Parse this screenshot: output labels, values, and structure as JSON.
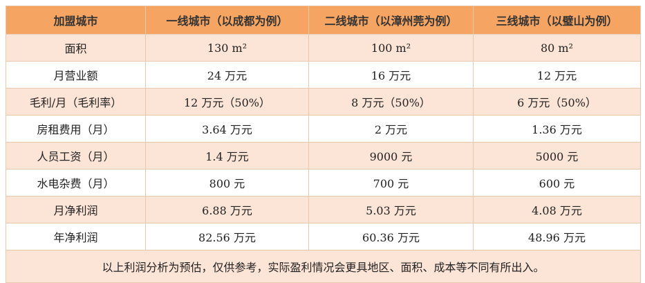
{
  "table": {
    "header": [
      "加盟城市",
      "一线城市（以成都为例）",
      "二线城市（以漳州莞为例）",
      "三线城市（以璧山为例）"
    ],
    "rows": [
      [
        "面积",
        "130 m²",
        "100 m²",
        "80 m²"
      ],
      [
        "月营业额",
        "24 万元",
        "16 万元",
        "12 万元"
      ],
      [
        "毛利/月（毛利率）",
        "12 万元（50%）",
        "8 万元（50%）",
        "6 万元（50%）"
      ],
      [
        "房租费用（月）",
        "3.64 万元",
        "2 万元",
        "1.36 万元"
      ],
      [
        "人员工资（月）",
        "1.4 万元",
        "9000 元",
        "5000 元"
      ],
      [
        "水电杂费（月）",
        "800 元",
        "700 元",
        "600 元"
      ],
      [
        "月净利润",
        "6.88 万元",
        "5.03 万元",
        "4.08 万元"
      ],
      [
        "年净利润",
        "82.56 万元",
        "60.36 万元",
        "48.96 万元"
      ]
    ],
    "note": "以上利润分析为预估，仅供参考，实际盈利情况会更具地区、面积、成本等不同有所出入。"
  }
}
